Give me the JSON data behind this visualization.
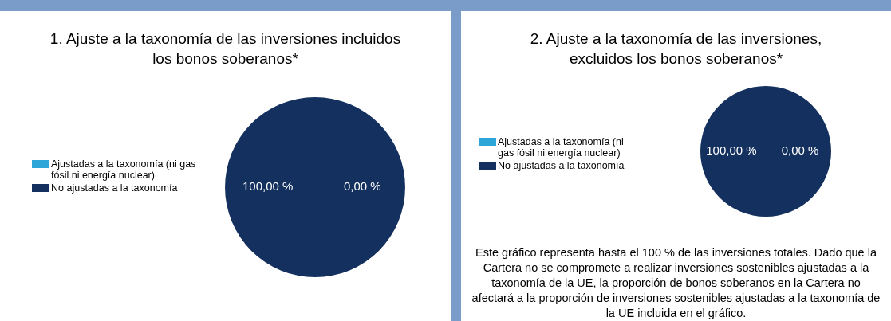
{
  "chart_data": [
    {
      "type": "pie",
      "title": "1. Ajuste a la taxonomía de las inversiones incluidos los bonos soberanos*",
      "categories": [
        "Ajustadas a la taxonomía (ni gas fósil ni energía nuclear)",
        "No ajustadas a la taxonomía"
      ],
      "values": [
        0,
        100
      ],
      "colors": [
        "#2ea7d8",
        "#13305e"
      ],
      "value_labels": [
        "0,00 %",
        "100,00 %"
      ],
      "legend": "left"
    },
    {
      "type": "pie",
      "title": "2. Ajuste a la taxonomía de las inversiones, excluidos los bonos soberanos*",
      "categories": [
        "Ajustadas a la taxonomía (ni gas fósil ni energía nuclear)",
        "No ajustadas a la taxonomía"
      ],
      "values": [
        0,
        100
      ],
      "colors": [
        "#2ea7d8",
        "#13305e"
      ],
      "value_labels": [
        "0,00 %",
        "100,00 %"
      ],
      "legend": "left",
      "annotations": [
        "Este gráfico representa hasta el 100 % de las inversiones totales. Dado que la Cartera no se compromete a realizar inversiones sostenibles ajustadas a la taxonomía de la UE, la proporción de bonos soberanos en la Cartera no afectará a la proporción de inversiones sostenibles ajustadas a la taxonomía de la UE incluida en el gráfico."
      ]
    }
  ]
}
